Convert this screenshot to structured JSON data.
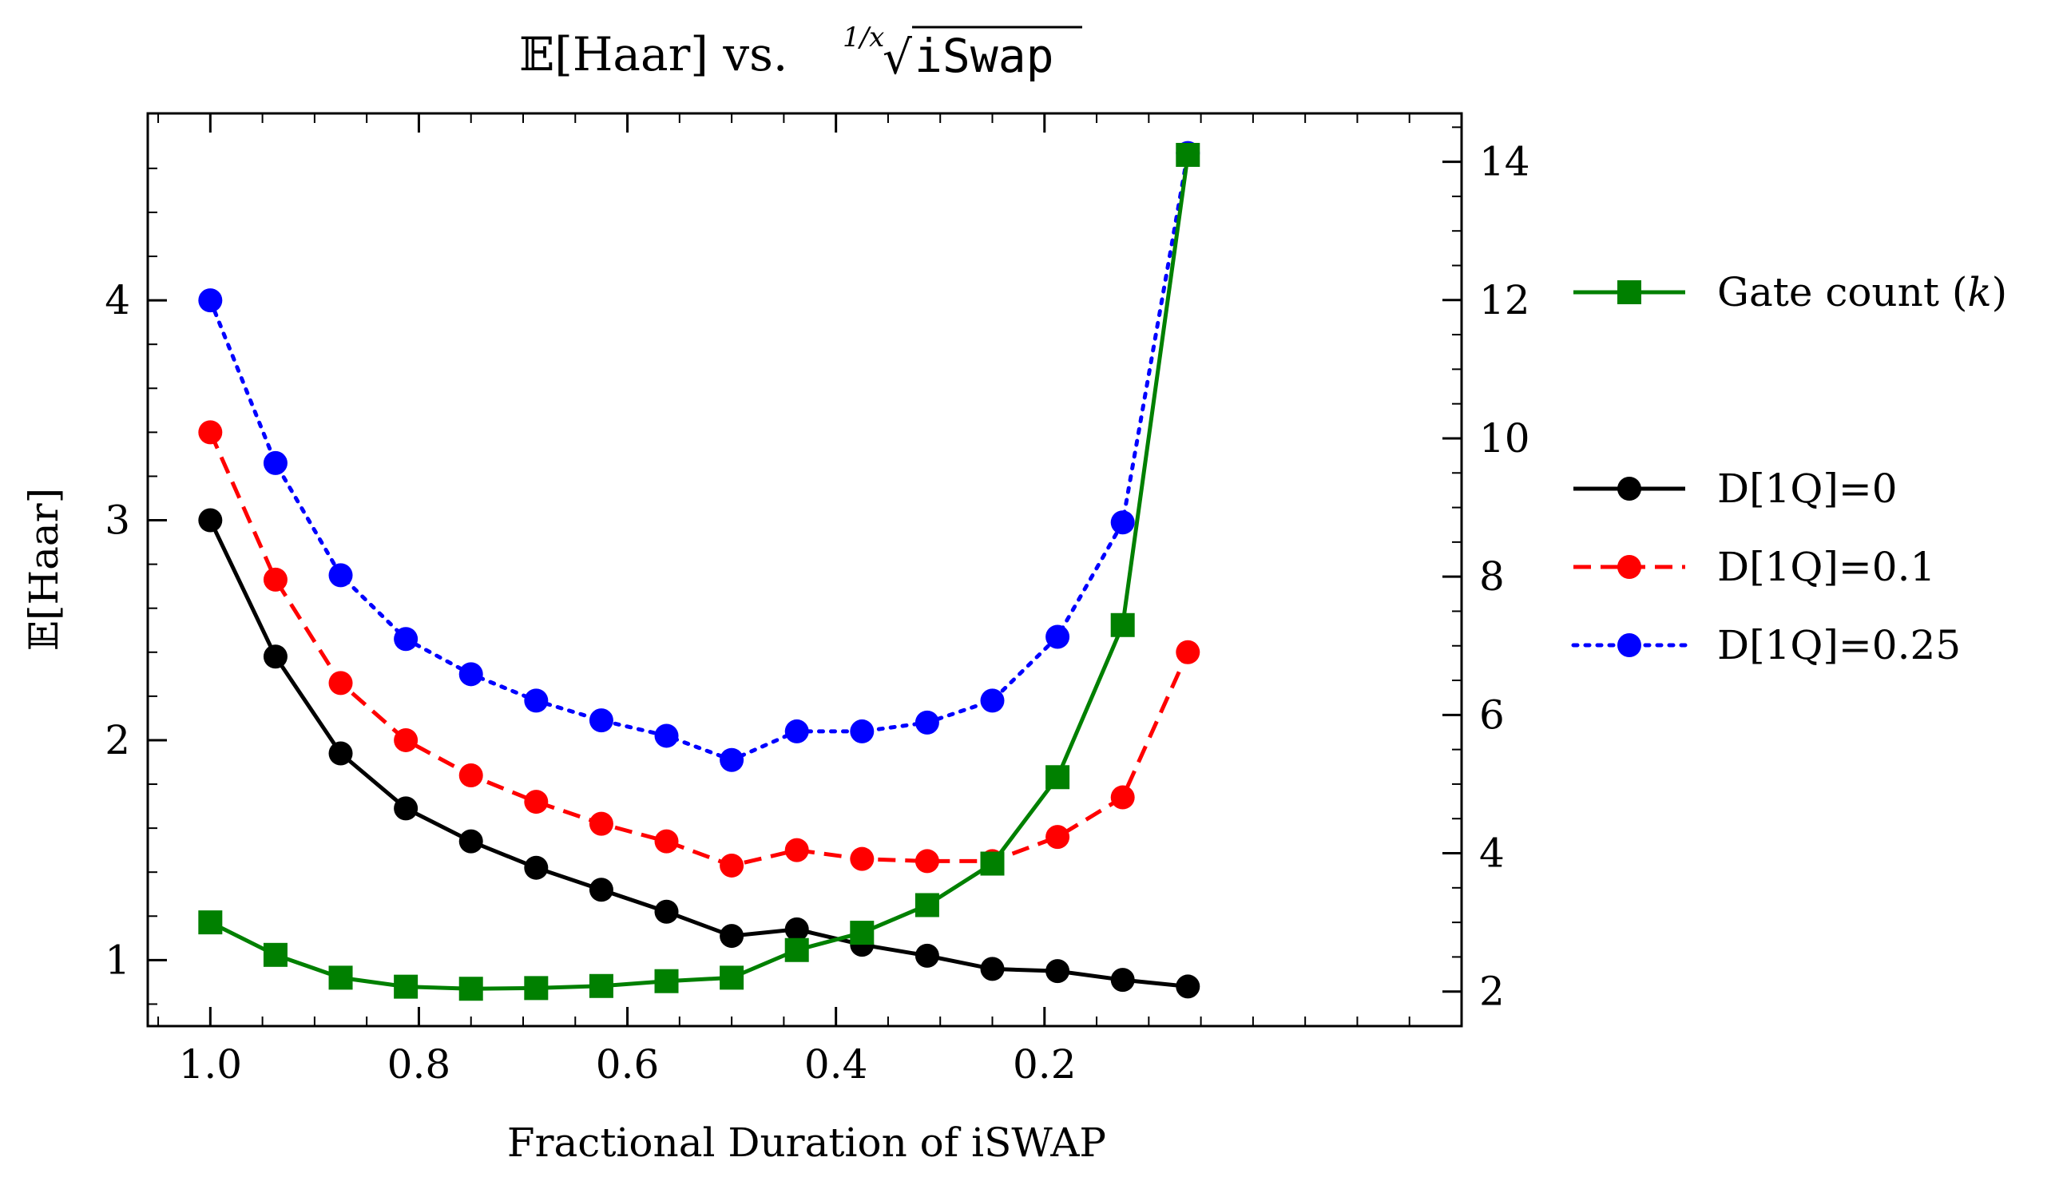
{
  "chart_data": {
    "type": "line",
    "title": {
      "prefix": "𝔼[Haar] vs. ",
      "root_index": "1/x",
      "root_symbol": "√",
      "operand": "iSwap"
    },
    "xlabel": "Fractional Duration of iSWAP",
    "ylabel": "𝔼[Haar]",
    "x_reversed": true,
    "xlim": [
      1.06,
      -0.2
    ],
    "x_ticks": [
      1.0,
      0.8,
      0.6,
      0.4,
      0.2
    ],
    "x_tick_labels": [
      "1.0",
      "0.8",
      "0.6",
      "0.4",
      "0.2"
    ],
    "ylim": [
      0.7,
      4.85
    ],
    "y_ticks": [
      1,
      2,
      3,
      4
    ],
    "y_tick_labels": [
      "1",
      "2",
      "3",
      "4"
    ],
    "y2lim": [
      1.5,
      14.7
    ],
    "y2_ticks": [
      2,
      4,
      6,
      8,
      10,
      12,
      14
    ],
    "y2_tick_labels": [
      "2",
      "4",
      "6",
      "8",
      "10",
      "12",
      "14"
    ],
    "x": [
      1.0,
      0.9375,
      0.875,
      0.8125,
      0.75,
      0.6875,
      0.625,
      0.5625,
      0.5,
      0.4375,
      0.375,
      0.3125,
      0.25,
      0.1875,
      0.125,
      0.0625
    ],
    "series": [
      {
        "name": "D[1Q]=0",
        "axis": "left",
        "color": "#000000",
        "dash": "solid",
        "marker": "circle",
        "values": [
          3.0,
          2.38,
          1.94,
          1.69,
          1.54,
          1.42,
          1.32,
          1.22,
          1.11,
          1.14,
          1.07,
          1.02,
          0.96,
          0.95,
          0.91,
          0.88
        ]
      },
      {
        "name": "D[1Q]=0.1",
        "axis": "left",
        "color": "#ff0000",
        "dash": "dashed",
        "marker": "circle",
        "values": [
          3.4,
          2.73,
          2.26,
          2.0,
          1.84,
          1.72,
          1.62,
          1.54,
          1.43,
          1.5,
          1.46,
          1.45,
          1.45,
          1.56,
          1.74,
          2.4
        ]
      },
      {
        "name": "D[1Q]=0.25",
        "axis": "left",
        "color": "#0000ff",
        "dash": "dotted",
        "marker": "circle",
        "values": [
          4.0,
          3.26,
          2.75,
          2.46,
          2.3,
          2.18,
          2.09,
          2.02,
          1.91,
          2.04,
          2.04,
          2.08,
          2.18,
          2.47,
          2.99,
          4.67
        ]
      },
      {
        "name": "Gate count (k)",
        "axis": "right",
        "color": "#008000",
        "dash": "solid",
        "marker": "square",
        "values": [
          3.0,
          2.53,
          2.2,
          2.07,
          2.04,
          2.05,
          2.08,
          2.15,
          2.2,
          2.6,
          2.85,
          3.25,
          3.85,
          5.1,
          7.3,
          14.1
        ]
      }
    ],
    "legend_placement": "right-outside",
    "legend": {
      "group1": [
        {
          "series": "Gate count (k)",
          "label_text": "Gate count (",
          "label_italic": "k",
          "label_suffix": ")"
        }
      ],
      "group2": [
        {
          "series": "D[1Q]=0",
          "label_text": "D[1Q]=0"
        },
        {
          "series": "D[1Q]=0.1",
          "label_text": "D[1Q]=0.1"
        },
        {
          "series": "D[1Q]=0.25",
          "label_text": "D[1Q]=0.25"
        }
      ]
    },
    "grid": false
  }
}
